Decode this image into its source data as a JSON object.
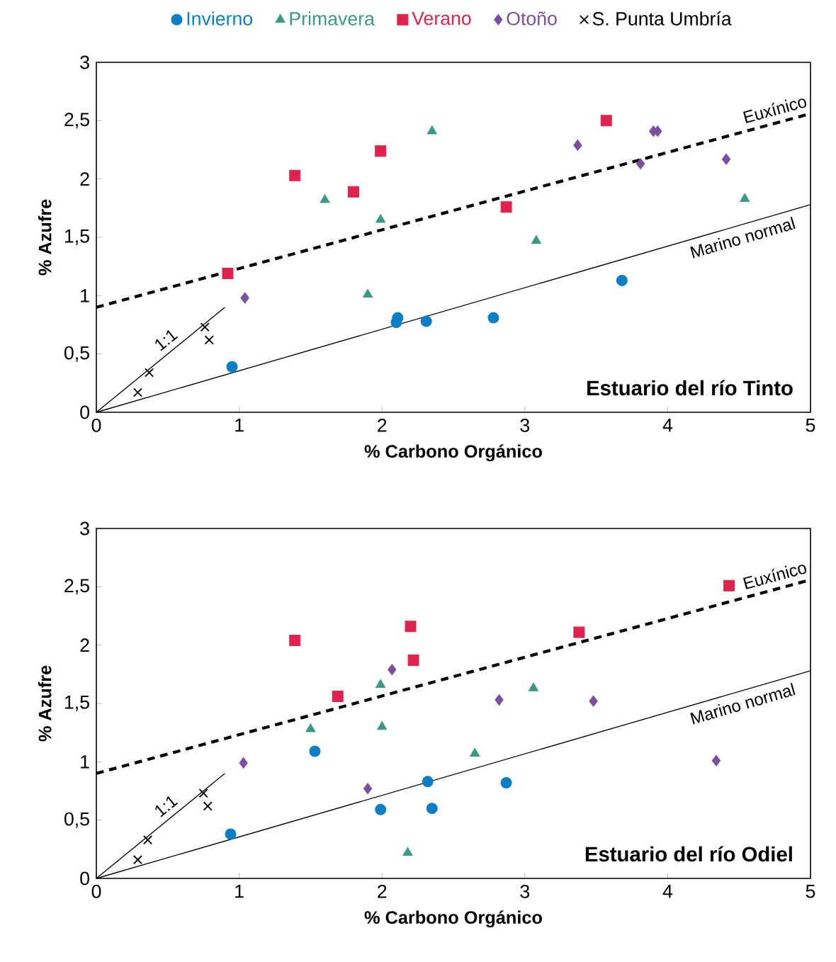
{
  "chart_data": [
    {
      "type": "scatter",
      "xlabel": "% Carbono Orgánico",
      "ylabel": "% Azufre",
      "xlim": [
        0,
        5
      ],
      "ylim": [
        0,
        3
      ],
      "xticks": [
        0,
        1,
        2,
        3,
        4,
        5
      ],
      "yticks": [
        0,
        {
          "value": 0.5,
          "label": "0,5"
        },
        1,
        {
          "value": 1.5,
          "label": "1,5"
        },
        2,
        {
          "value": 2.5,
          "label": "2,5"
        },
        3
      ],
      "legend": "top",
      "series": [
        {
          "name": "Invierno",
          "color": "#0a7fc8",
          "marker": "circle",
          "x": [
            0.95,
            2.11,
            2.1,
            2.31,
            2.78,
            3.68
          ],
          "values": [
            0.39,
            0.81,
            0.77,
            0.78,
            0.81,
            1.13
          ]
        },
        {
          "name": "Primavera",
          "color": "#3a9a85",
          "marker": "triangle",
          "x": [
            1.6,
            1.99,
            1.9,
            2.35,
            3.08,
            4.54
          ],
          "values": [
            1.82,
            1.65,
            1.01,
            2.41,
            1.47,
            1.83
          ]
        },
        {
          "name": "Verano",
          "color": "#e0234e",
          "marker": "square",
          "x": [
            0.92,
            1.39,
            1.8,
            1.99,
            2.87,
            3.57
          ],
          "values": [
            1.19,
            2.03,
            1.89,
            2.24,
            1.76,
            2.5
          ]
        },
        {
          "name": "Otoño",
          "color": "#7b4f9e",
          "marker": "diamond",
          "x": [
            1.04,
            3.37,
            3.81,
            3.9,
            3.93,
            4.41
          ],
          "values": [
            0.98,
            2.29,
            2.13,
            2.41,
            2.41,
            2.17
          ]
        },
        {
          "name": "S. Punta Umbría",
          "color": "#000000",
          "marker": "cross",
          "x": [
            0.29,
            0.37,
            0.76,
            0.79
          ],
          "values": [
            0.17,
            0.34,
            0.73,
            0.62
          ]
        },
        {
          "type": "line",
          "name": "Euxínico",
          "color": "#000000",
          "marker": "none",
          "line_style": "dashed",
          "x": [
            0,
            5
          ],
          "values": [
            0.9,
            2.56
          ]
        },
        {
          "type": "line",
          "name": "Marino normal",
          "color": "#000000",
          "marker": "none",
          "line_style": "solid",
          "x": [
            0,
            5
          ],
          "values": [
            0,
            1.78
          ]
        },
        {
          "type": "line",
          "name": "1:1",
          "color": "#000000",
          "marker": "none",
          "line_style": "solid",
          "x": [
            0,
            0.9
          ],
          "values": [
            0,
            0.9
          ]
        }
      ],
      "annotations": [
        "Estuario del río Tinto"
      ]
    },
    {
      "type": "scatter",
      "xlabel": "% Carbono Orgánico",
      "ylabel": "% Azufre",
      "xlim": [
        0,
        5
      ],
      "ylim": [
        0,
        3
      ],
      "xticks": [
        0,
        1,
        2,
        3,
        4,
        5
      ],
      "yticks": [
        0,
        {
          "value": 0.5,
          "label": "0,5"
        },
        1,
        {
          "value": 1.5,
          "label": "1,5"
        },
        2,
        {
          "value": 2.5,
          "label": "2,5"
        },
        3
      ],
      "series": [
        {
          "color": "#0a7fc8",
          "marker": "circle",
          "x": [
            0.94,
            1.53,
            1.99,
            2.32,
            2.35,
            2.87
          ],
          "values": [
            0.38,
            1.09,
            0.59,
            0.83,
            0.6,
            0.82
          ]
        },
        {
          "color": "#3a9a85",
          "marker": "triangle",
          "x": [
            1.5,
            1.99,
            2.0,
            2.18,
            2.65,
            3.06
          ],
          "values": [
            1.28,
            1.66,
            1.3,
            0.22,
            1.07,
            1.63
          ]
        },
        {
          "color": "#e0234e",
          "marker": "square",
          "x": [
            1.39,
            1.69,
            2.2,
            2.22,
            3.38,
            4.43
          ],
          "values": [
            2.04,
            1.56,
            2.16,
            1.87,
            2.11,
            2.51
          ]
        },
        {
          "color": "#7b4f9e",
          "marker": "diamond",
          "x": [
            1.03,
            1.9,
            2.07,
            2.82,
            3.48,
            4.34
          ],
          "values": [
            0.99,
            0.77,
            1.79,
            1.53,
            1.52,
            1.01
          ]
        },
        {
          "color": "#000000",
          "marker": "cross",
          "x": [
            0.29,
            0.36,
            0.75,
            0.78
          ],
          "values": [
            0.16,
            0.33,
            0.73,
            0.62
          ]
        },
        {
          "type": "line",
          "name": "Euxínico",
          "color": "#000000",
          "marker": "none",
          "line_style": "dashed",
          "x": [
            0,
            5
          ],
          "values": [
            0.9,
            2.56
          ]
        },
        {
          "type": "line",
          "name": "Marino normal",
          "color": "#000000",
          "marker": "none",
          "line_style": "solid",
          "x": [
            0,
            5
          ],
          "values": [
            0,
            1.78
          ]
        },
        {
          "type": "line",
          "name": "1:1",
          "color": "#000000",
          "marker": "none",
          "line_style": "solid",
          "x": [
            0,
            0.9
          ],
          "values": [
            0,
            0.9
          ]
        }
      ],
      "annotations": [
        "Estuario del río Odiel"
      ]
    }
  ]
}
